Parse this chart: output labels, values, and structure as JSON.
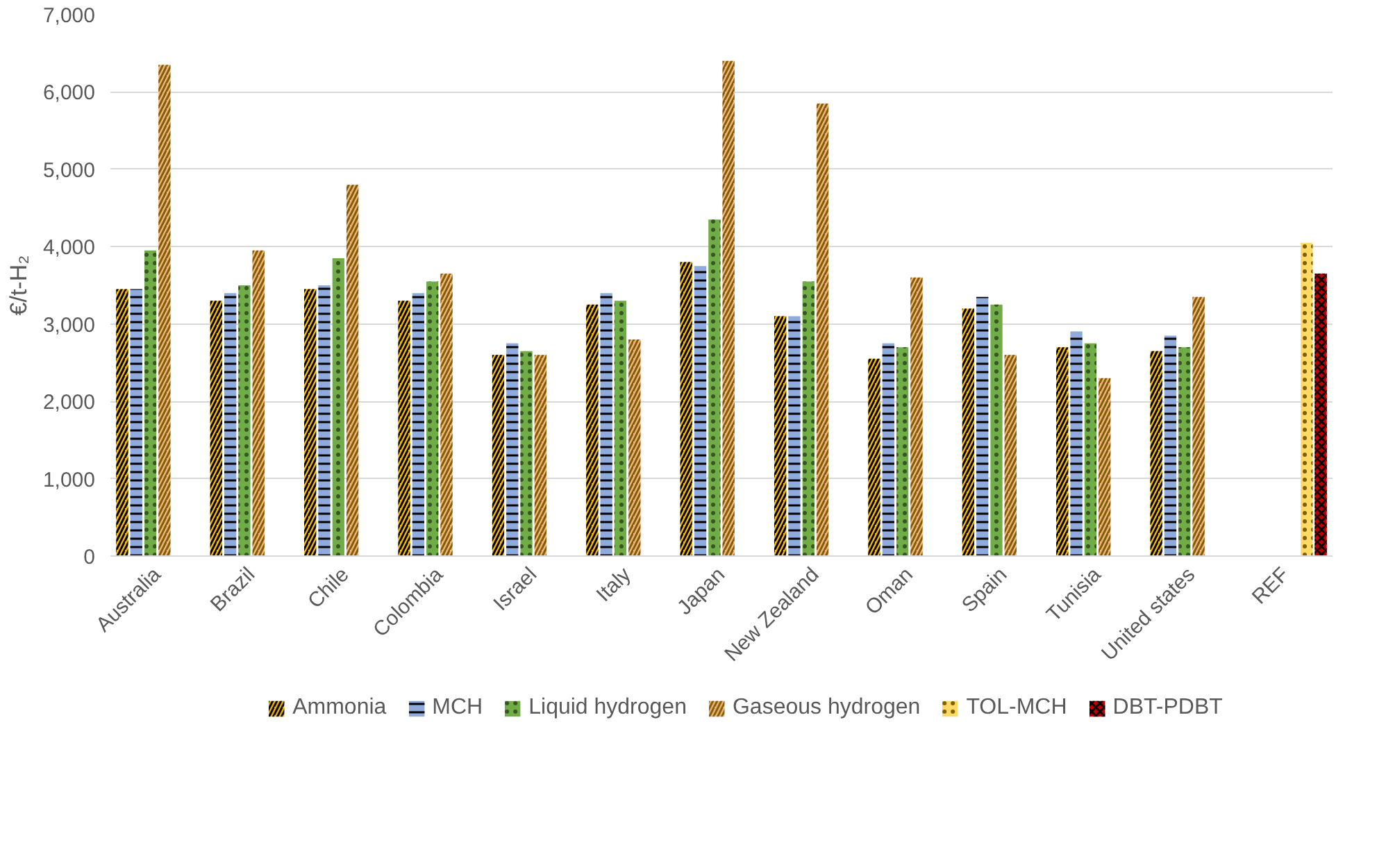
{
  "chart_data": {
    "type": "bar",
    "ylabel": "€/t-H₂",
    "categories": [
      "Australia",
      "Brazil",
      "Chile",
      "Colombia",
      "Israel",
      "Italy",
      "Japan",
      "New Zealand",
      "Oman",
      "Spain",
      "Tunisia",
      "United states",
      "REF"
    ],
    "series": [
      {
        "name": "Ammonia",
        "color": "#f5b800",
        "values": [
          3450,
          3300,
          3450,
          3300,
          2600,
          3250,
          3800,
          3100,
          2550,
          3200,
          2700,
          2650,
          null
        ]
      },
      {
        "name": "MCH",
        "color": "#8faadc",
        "values": [
          3450,
          3400,
          3500,
          3400,
          2750,
          3400,
          3750,
          3100,
          2750,
          3350,
          2900,
          2850,
          null
        ]
      },
      {
        "name": "Liquid hydrogen",
        "color": "#70ad47",
        "values": [
          3950,
          3500,
          3850,
          3550,
          2650,
          3300,
          4350,
          3550,
          2700,
          3250,
          2750,
          2700,
          null
        ]
      },
      {
        "name": "Gaseous hydrogen",
        "color": "#f4b183",
        "values": [
          6350,
          3950,
          4800,
          3650,
          2600,
          2800,
          6400,
          5850,
          3600,
          2600,
          2300,
          3350,
          null
        ]
      },
      {
        "name": "TOL-MCH",
        "color": "#ffd966",
        "values": [
          null,
          null,
          null,
          null,
          null,
          null,
          null,
          null,
          null,
          null,
          null,
          null,
          4050
        ]
      },
      {
        "name": "DBT-PDBT",
        "color": "#c00000",
        "values": [
          null,
          null,
          null,
          null,
          null,
          null,
          null,
          null,
          null,
          null,
          null,
          null,
          3650
        ]
      }
    ],
    "ylim": [
      0,
      7000
    ],
    "yticks": [
      {
        "value": 0,
        "label": "0"
      },
      {
        "value": 1000,
        "label": "1,000"
      },
      {
        "value": 2000,
        "label": "2,000"
      },
      {
        "value": 3000,
        "label": "3,000"
      },
      {
        "value": 4000,
        "label": "4,000"
      },
      {
        "value": 5000,
        "label": "5,000"
      },
      {
        "value": 6000,
        "label": "6,000"
      },
      {
        "value": 7000,
        "label": "7,000"
      }
    ],
    "grid": "y",
    "legend": "bottom"
  }
}
